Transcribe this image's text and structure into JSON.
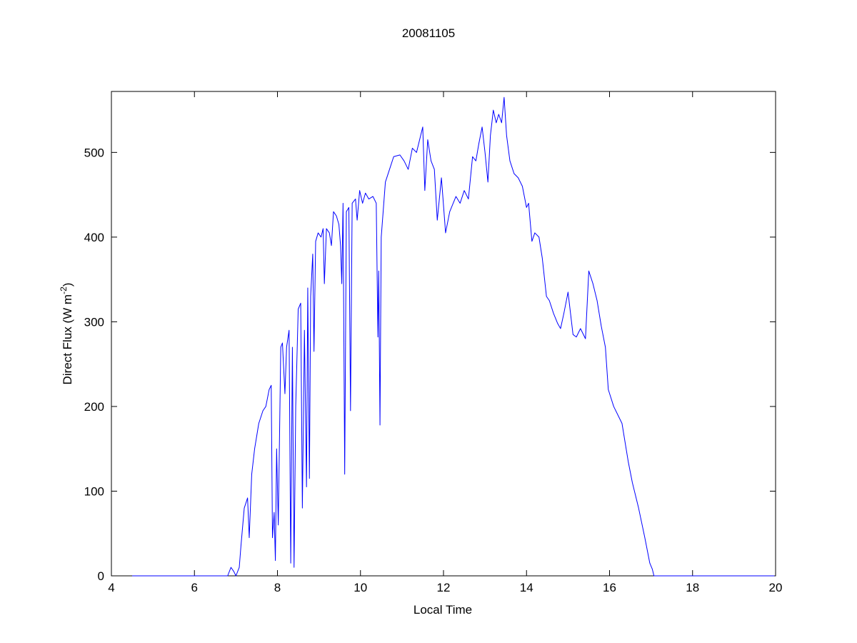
{
  "chart_data": {
    "type": "line",
    "title": "20081105",
    "xlabel": "Local Time",
    "ylabel": [
      "Direct Flux (W m",
      "-2",
      ")"
    ],
    "xlim": [
      4,
      20
    ],
    "ylim": [
      0,
      572
    ],
    "xticks": [
      4,
      6,
      8,
      10,
      12,
      14,
      16,
      18,
      20
    ],
    "yticks": [
      0,
      100,
      200,
      300,
      400,
      500
    ],
    "grid": false,
    "x": [
      4.5,
      5.0,
      5.5,
      6.0,
      6.5,
      6.8,
      6.88,
      6.95,
      7.0,
      7.08,
      7.12,
      7.2,
      7.28,
      7.32,
      7.38,
      7.45,
      7.55,
      7.65,
      7.72,
      7.8,
      7.85,
      7.88,
      7.92,
      7.95,
      7.98,
      8.02,
      8.08,
      8.12,
      8.18,
      8.22,
      8.28,
      8.32,
      8.36,
      8.4,
      8.44,
      8.5,
      8.56,
      8.6,
      8.65,
      8.7,
      8.73,
      8.77,
      8.8,
      8.85,
      8.88,
      8.92,
      8.98,
      9.05,
      9.1,
      9.13,
      9.18,
      9.25,
      9.3,
      9.35,
      9.42,
      9.48,
      9.52,
      9.55,
      9.58,
      9.62,
      9.66,
      9.72,
      9.76,
      9.8,
      9.88,
      9.92,
      9.98,
      10.05,
      10.12,
      10.2,
      10.3,
      10.38,
      10.42,
      10.44,
      10.47,
      10.5,
      10.6,
      10.7,
      10.8,
      10.95,
      11.05,
      11.15,
      11.25,
      11.35,
      11.45,
      11.5,
      11.55,
      11.62,
      11.7,
      11.78,
      11.85,
      11.95,
      12.05,
      12.15,
      12.3,
      12.4,
      12.5,
      12.6,
      12.7,
      12.78,
      12.85,
      12.93,
      13.0,
      13.07,
      13.13,
      13.2,
      13.27,
      13.33,
      13.4,
      13.46,
      13.52,
      13.6,
      13.7,
      13.8,
      13.9,
      14.0,
      14.05,
      14.13,
      14.2,
      14.3,
      14.38,
      14.48,
      14.55,
      14.65,
      14.75,
      14.82,
      14.9,
      15.0,
      15.06,
      15.12,
      15.2,
      15.3,
      15.42,
      15.5,
      15.6,
      15.7,
      15.8,
      15.9,
      15.97,
      16.1,
      16.3,
      16.45,
      16.55,
      16.7,
      16.85,
      16.97,
      17.03,
      17.07,
      17.5,
      18.0,
      18.5,
      19.0,
      19.5,
      19.97
    ],
    "series": [
      {
        "name": "Direct Flux",
        "color": "#0000ff",
        "values": [
          0,
          0,
          0,
          0,
          0,
          0,
          10,
          5,
          0,
          10,
          35,
          80,
          92,
          45,
          120,
          150,
          180,
          195,
          200,
          220,
          225,
          45,
          75,
          18,
          150,
          60,
          270,
          275,
          215,
          270,
          290,
          15,
          270,
          10,
          200,
          315,
          322,
          80,
          290,
          105,
          340,
          115,
          330,
          380,
          265,
          395,
          405,
          400,
          410,
          345,
          410,
          405,
          390,
          430,
          425,
          415,
          390,
          345,
          440,
          120,
          430,
          435,
          195,
          440,
          445,
          420,
          455,
          440,
          452,
          445,
          448,
          440,
          282,
          360,
          178,
          400,
          465,
          480,
          495,
          497,
          490,
          480,
          505,
          500,
          520,
          530,
          455,
          515,
          490,
          480,
          420,
          470,
          405,
          430,
          448,
          440,
          455,
          445,
          495,
          490,
          510,
          530,
          500,
          465,
          520,
          550,
          535,
          545,
          535,
          565,
          520,
          490,
          475,
          470,
          460,
          435,
          440,
          395,
          405,
          400,
          375,
          330,
          325,
          310,
          298,
          292,
          310,
          335,
          310,
          285,
          282,
          292,
          280,
          360,
          345,
          325,
          295,
          270,
          220,
          200,
          180,
          135,
          110,
          80,
          45,
          15,
          8,
          0,
          0,
          0,
          0,
          0,
          0,
          0
        ]
      }
    ]
  }
}
